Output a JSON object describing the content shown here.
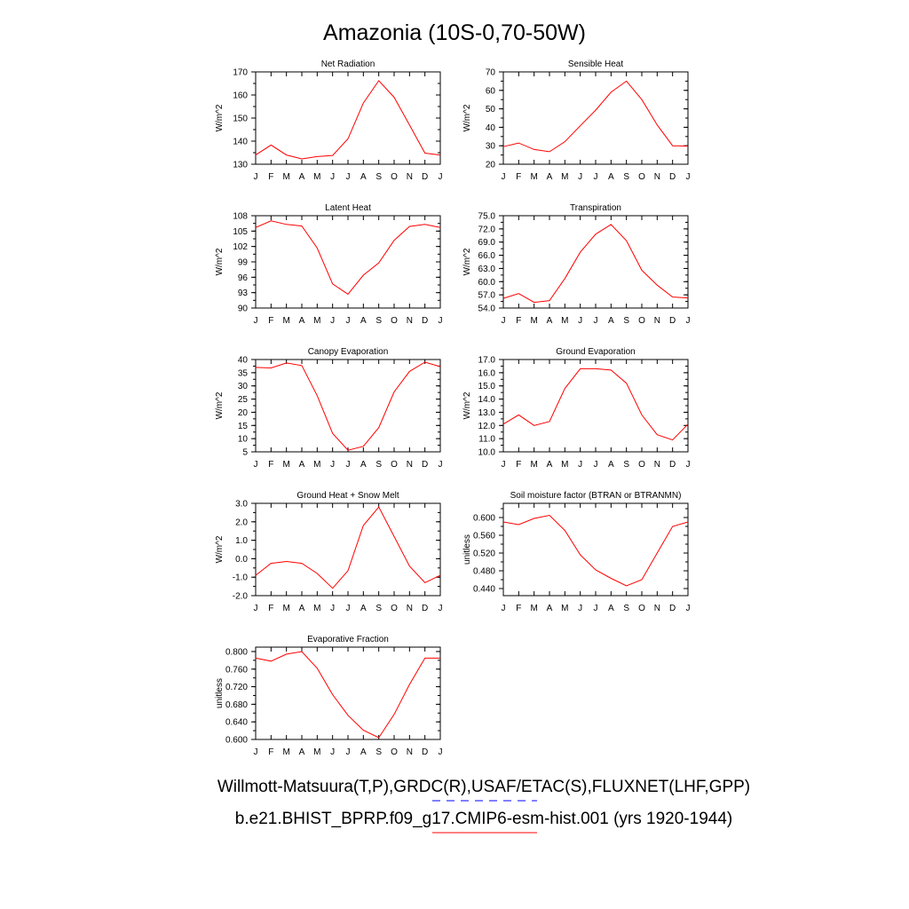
{
  "title": "Amazonia (10S-0,70-50W)",
  "legend": [
    {
      "label": "Willmott-Matsuura(T,P),GRDC(R),USAF/ETAC(S),FLUXNET(LHF,GPP)",
      "color": "#0000ff",
      "dash": "dashed"
    },
    {
      "label": "b.e21.BHIST_BPRP.f09_g17.CMIP6-esm-hist.001 (yrs 1920-1944)",
      "color": "#ff0000",
      "dash": "solid"
    }
  ],
  "chart_data": [
    {
      "type": "line",
      "title": "Net Radiation",
      "ylabel": "W/m^2",
      "categories": [
        "J",
        "F",
        "M",
        "A",
        "M",
        "J",
        "J",
        "A",
        "S",
        "O",
        "N",
        "D",
        "J"
      ],
      "ylim": [
        130,
        170
      ],
      "yticks": [
        130,
        140,
        150,
        160,
        170
      ],
      "ytick_decimals": 0,
      "ytick_labels": [
        "130",
        "140",
        "150",
        "160",
        "170"
      ],
      "series": [
        {
          "color": "#ff0000",
          "values": [
            134,
            138.3,
            134,
            132.3,
            133.3,
            133.8,
            141,
            156.5,
            166.2,
            159,
            147,
            134.8,
            134
          ]
        }
      ]
    },
    {
      "type": "line",
      "title": "Sensible Heat",
      "ylabel": "W/m^2",
      "categories": [
        "J",
        "F",
        "M",
        "A",
        "M",
        "J",
        "J",
        "A",
        "S",
        "O",
        "N",
        "D",
        "J"
      ],
      "ylim": [
        20,
        70
      ],
      "yticks": [
        20,
        30,
        40,
        50,
        60,
        70
      ],
      "ytick_decimals": 0,
      "ytick_labels": [
        "20",
        "30",
        "40",
        "50",
        "60",
        "70"
      ],
      "series": [
        {
          "color": "#ff0000",
          "values": [
            29.5,
            31.5,
            28,
            26.8,
            32.2,
            40.8,
            49.3,
            59,
            65,
            55,
            41.3,
            30,
            29.8
          ]
        }
      ]
    },
    {
      "type": "line",
      "title": "Latent Heat",
      "ylabel": "W/m^2",
      "categories": [
        "J",
        "F",
        "M",
        "A",
        "M",
        "J",
        "J",
        "A",
        "S",
        "O",
        "N",
        "D",
        "J"
      ],
      "ylim": [
        90,
        108
      ],
      "yticks": [
        90,
        93,
        96,
        99,
        102,
        105,
        108
      ],
      "ytick_decimals": 0,
      "ytick_labels": [
        "90",
        "93",
        "96",
        "99",
        "102",
        "105",
        "108"
      ],
      "series": [
        {
          "color": "#ff0000",
          "values": [
            105.7,
            107,
            106.3,
            106,
            101.7,
            94.7,
            92.7,
            96.4,
            98.8,
            103.2,
            105.9,
            106.3,
            105.7
          ]
        }
      ]
    },
    {
      "type": "line",
      "title": "Transpiration",
      "ylabel": "W/m^2",
      "categories": [
        "J",
        "F",
        "M",
        "A",
        "M",
        "J",
        "J",
        "A",
        "S",
        "O",
        "N",
        "D",
        "J"
      ],
      "ylim": [
        54,
        75
      ],
      "yticks": [
        54,
        57,
        60,
        63,
        66,
        69,
        72,
        75
      ],
      "ytick_decimals": 1,
      "ytick_labels": [
        "54.0",
        "57.0",
        "60.0",
        "63.0",
        "66.0",
        "69.0",
        "72.0",
        "75.0"
      ],
      "series": [
        {
          "color": "#ff0000",
          "values": [
            56.2,
            57.3,
            55.3,
            55.7,
            60.7,
            66.7,
            70.8,
            73,
            69.3,
            62.6,
            59.2,
            56.5,
            56.3
          ]
        }
      ]
    },
    {
      "type": "line",
      "title": "Canopy Evaporation",
      "ylabel": "W/m^2",
      "categories": [
        "J",
        "F",
        "M",
        "A",
        "M",
        "J",
        "J",
        "A",
        "S",
        "O",
        "N",
        "D",
        "J"
      ],
      "ylim": [
        5,
        40
      ],
      "yticks": [
        5,
        10,
        15,
        20,
        25,
        30,
        35,
        40
      ],
      "ytick_decimals": 0,
      "ytick_labels": [
        "5",
        "10",
        "15",
        "20",
        "25",
        "30",
        "35",
        "40"
      ],
      "series": [
        {
          "color": "#ff0000",
          "values": [
            37,
            36.8,
            38.7,
            37.7,
            26.3,
            12,
            5.6,
            7.1,
            14.2,
            27.7,
            35.5,
            39,
            37.3
          ]
        }
      ]
    },
    {
      "type": "line",
      "title": "Ground Evaporation",
      "ylabel": "W/m^2",
      "categories": [
        "J",
        "F",
        "M",
        "A",
        "M",
        "J",
        "J",
        "A",
        "S",
        "O",
        "N",
        "D",
        "J"
      ],
      "ylim": [
        10,
        17
      ],
      "yticks": [
        10,
        11,
        12,
        13,
        14,
        15,
        16,
        17
      ],
      "ytick_decimals": 1,
      "ytick_labels": [
        "10.0",
        "11.0",
        "12.0",
        "13.0",
        "14.0",
        "15.0",
        "16.0",
        "17.0"
      ],
      "series": [
        {
          "color": "#ff0000",
          "values": [
            12.1,
            12.8,
            12,
            12.3,
            14.8,
            16.3,
            16.3,
            16.2,
            15.2,
            12.8,
            11.3,
            10.9,
            12.1
          ]
        }
      ]
    },
    {
      "type": "line",
      "title": "Ground Heat + Snow Melt",
      "ylabel": "W/m^2",
      "categories": [
        "J",
        "F",
        "M",
        "A",
        "M",
        "J",
        "J",
        "A",
        "S",
        "O",
        "N",
        "D",
        "J"
      ],
      "ylim": [
        -2,
        3
      ],
      "yticks": [
        -2,
        -1,
        0,
        1,
        2,
        3
      ],
      "ytick_decimals": 1,
      "ytick_labels": [
        "-2.0",
        "-1.0",
        "0.0",
        "1.0",
        "2.0",
        "3.0"
      ],
      "series": [
        {
          "color": "#ff0000",
          "values": [
            -0.9,
            -0.25,
            -0.15,
            -0.25,
            -0.8,
            -1.6,
            -0.65,
            1.8,
            2.8,
            1.2,
            -0.4,
            -1.3,
            -0.9
          ]
        }
      ]
    },
    {
      "type": "line",
      "title": "Soil moisture factor (BTRAN or BTRANMN)",
      "ylabel": "unitless",
      "categories": [
        "J",
        "F",
        "M",
        "A",
        "M",
        "J",
        "J",
        "A",
        "S",
        "O",
        "N",
        "D",
        "J"
      ],
      "ylim": [
        0.424,
        0.632
      ],
      "yticks": [
        0.44,
        0.48,
        0.52,
        0.56,
        0.6
      ],
      "ytick_decimals": 3,
      "ytick_labels": [
        "0.440",
        "0.480",
        "0.520",
        "0.560",
        "0.600"
      ],
      "series": [
        {
          "color": "#ff0000",
          "values": [
            0.59,
            0.584,
            0.598,
            0.605,
            0.571,
            0.516,
            0.482,
            0.463,
            0.446,
            0.46,
            0.52,
            0.58,
            0.59
          ]
        }
      ]
    },
    {
      "type": "line",
      "title": "Evaporative Fraction",
      "ylabel": "unitless",
      "categories": [
        "J",
        "F",
        "M",
        "A",
        "M",
        "J",
        "J",
        "A",
        "S",
        "O",
        "N",
        "D",
        "J"
      ],
      "ylim": [
        0.6,
        0.81
      ],
      "yticks": [
        0.6,
        0.64,
        0.68,
        0.72,
        0.76,
        0.8
      ],
      "ytick_decimals": 3,
      "ytick_labels": [
        "0.600",
        "0.640",
        "0.680",
        "0.720",
        "0.760",
        "0.800"
      ],
      "series": [
        {
          "color": "#ff0000",
          "values": [
            0.785,
            0.778,
            0.794,
            0.8,
            0.762,
            0.702,
            0.655,
            0.621,
            0.604,
            0.657,
            0.725,
            0.785,
            0.785
          ]
        }
      ]
    }
  ]
}
